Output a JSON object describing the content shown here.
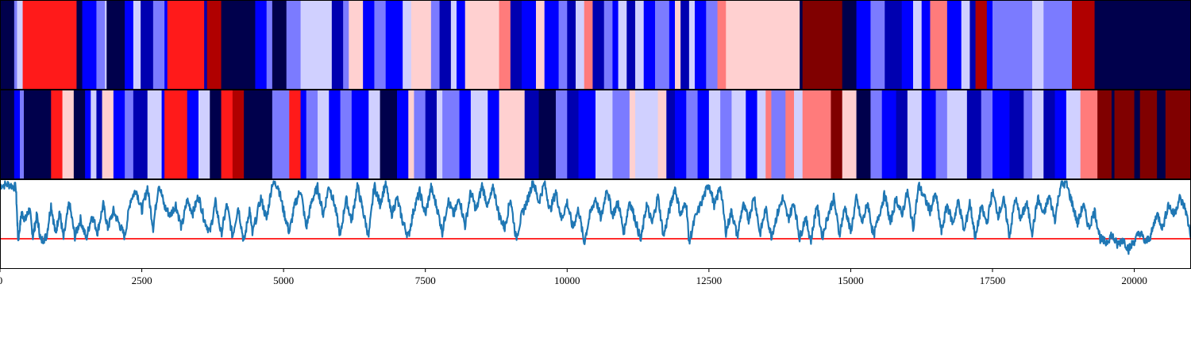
{
  "chart_data": {
    "type": "line",
    "title": "",
    "xlabel": "",
    "ylabel": "",
    "xlim": [
      0,
      21000
    ],
    "x_ticks": [
      0,
      2500,
      5000,
      7500,
      10000,
      12500,
      15000,
      17500,
      20000
    ],
    "x_tick_labels": [
      "0",
      "2500",
      "5000",
      "7500",
      "10000",
      "12500",
      "15000",
      "17500",
      "20000"
    ],
    "grid": false,
    "legend": "none",
    "panels": [
      {
        "type": "heatmap",
        "name": "state-strip-1"
      },
      {
        "type": "heatmap",
        "name": "state-strip-2"
      },
      {
        "type": "line",
        "name": "trace"
      }
    ],
    "colormap": [
      "#00004c",
      "#0000b0",
      "#0000ff",
      "#7b7bff",
      "#d0d0ff",
      "#ffd0d0",
      "#ff7b7b",
      "#ff1a1a",
      "#b00000",
      "#800000"
    ],
    "strip1": [
      [
        0,
        0
      ],
      [
        250,
        3
      ],
      [
        300,
        4
      ],
      [
        400,
        7
      ],
      [
        1350,
        0
      ],
      [
        1450,
        2
      ],
      [
        1700,
        3
      ],
      [
        1850,
        4
      ],
      [
        1880,
        0
      ],
      [
        2200,
        2
      ],
      [
        2350,
        4
      ],
      [
        2480,
        1
      ],
      [
        2700,
        3
      ],
      [
        2900,
        2
      ],
      [
        2950,
        7
      ],
      [
        3600,
        1
      ],
      [
        3650,
        8
      ],
      [
        3900,
        0
      ],
      [
        4500,
        2
      ],
      [
        4700,
        3
      ],
      [
        4800,
        0
      ],
      [
        5050,
        3
      ],
      [
        5300,
        4
      ],
      [
        5850,
        1
      ],
      [
        6050,
        3
      ],
      [
        6150,
        5
      ],
      [
        6400,
        2
      ],
      [
        6600,
        3
      ],
      [
        6800,
        2
      ],
      [
        7100,
        4
      ],
      [
        7250,
        5
      ],
      [
        7600,
        3
      ],
      [
        7750,
        1
      ],
      [
        7950,
        4
      ],
      [
        8050,
        2
      ],
      [
        8200,
        5
      ],
      [
        8800,
        6
      ],
      [
        9000,
        1
      ],
      [
        9200,
        2
      ],
      [
        9450,
        5
      ],
      [
        9600,
        2
      ],
      [
        9850,
        3
      ],
      [
        10000,
        1
      ],
      [
        10150,
        4
      ],
      [
        10300,
        6
      ],
      [
        10450,
        1
      ],
      [
        10650,
        3
      ],
      [
        10800,
        2
      ],
      [
        10900,
        4
      ],
      [
        11050,
        1
      ],
      [
        11200,
        4
      ],
      [
        11350,
        2
      ],
      [
        11550,
        3
      ],
      [
        11800,
        2
      ],
      [
        11900,
        5
      ],
      [
        12000,
        1
      ],
      [
        12150,
        4
      ],
      [
        12250,
        2
      ],
      [
        12450,
        3
      ],
      [
        12650,
        6
      ],
      [
        12800,
        5
      ],
      [
        14100,
        0
      ],
      [
        14150,
        9
      ],
      [
        14850,
        0
      ],
      [
        15100,
        2
      ],
      [
        15350,
        3
      ],
      [
        15600,
        1
      ],
      [
        15900,
        2
      ],
      [
        16100,
        4
      ],
      [
        16250,
        2
      ],
      [
        16400,
        6
      ],
      [
        16700,
        2
      ],
      [
        16950,
        4
      ],
      [
        17100,
        1
      ],
      [
        17200,
        8
      ],
      [
        17400,
        2
      ],
      [
        17500,
        3
      ],
      [
        18200,
        4
      ],
      [
        18400,
        3
      ],
      [
        18900,
        8
      ],
      [
        19300,
        0
      ]
    ],
    "strip2": [
      [
        0,
        0
      ],
      [
        250,
        2
      ],
      [
        350,
        3
      ],
      [
        420,
        0
      ],
      [
        900,
        7
      ],
      [
        1100,
        5
      ],
      [
        1300,
        0
      ],
      [
        1500,
        2
      ],
      [
        1600,
        4
      ],
      [
        1700,
        1
      ],
      [
        1800,
        5
      ],
      [
        2000,
        2
      ],
      [
        2200,
        3
      ],
      [
        2350,
        1
      ],
      [
        2600,
        4
      ],
      [
        2850,
        2
      ],
      [
        2900,
        7
      ],
      [
        3300,
        2
      ],
      [
        3500,
        4
      ],
      [
        3700,
        0
      ],
      [
        3900,
        7
      ],
      [
        4100,
        8
      ],
      [
        4300,
        0
      ],
      [
        4800,
        3
      ],
      [
        5100,
        7
      ],
      [
        5300,
        2
      ],
      [
        5400,
        3
      ],
      [
        5600,
        4
      ],
      [
        5800,
        2
      ],
      [
        6000,
        3
      ],
      [
        6200,
        2
      ],
      [
        6500,
        4
      ],
      [
        6700,
        0
      ],
      [
        7000,
        2
      ],
      [
        7200,
        5
      ],
      [
        7300,
        3
      ],
      [
        7500,
        1
      ],
      [
        7700,
        4
      ],
      [
        7800,
        3
      ],
      [
        8100,
        2
      ],
      [
        8300,
        4
      ],
      [
        8600,
        2
      ],
      [
        8800,
        5
      ],
      [
        9250,
        1
      ],
      [
        9500,
        0
      ],
      [
        9800,
        3
      ],
      [
        10000,
        1
      ],
      [
        10200,
        2
      ],
      [
        10500,
        4
      ],
      [
        10800,
        3
      ],
      [
        11100,
        5
      ],
      [
        11200,
        4
      ],
      [
        11600,
        5
      ],
      [
        11750,
        1
      ],
      [
        11900,
        2
      ],
      [
        12100,
        3
      ],
      [
        12300,
        2
      ],
      [
        12500,
        4
      ],
      [
        12700,
        3
      ],
      [
        12900,
        4
      ],
      [
        13150,
        2
      ],
      [
        13350,
        4
      ],
      [
        13500,
        6
      ],
      [
        13600,
        3
      ],
      [
        13850,
        6
      ],
      [
        14000,
        4
      ],
      [
        14150,
        6
      ],
      [
        14650,
        9
      ],
      [
        14850,
        5
      ],
      [
        15100,
        0
      ],
      [
        15350,
        3
      ],
      [
        15550,
        2
      ],
      [
        15800,
        1
      ],
      [
        16000,
        4
      ],
      [
        16250,
        2
      ],
      [
        16500,
        3
      ],
      [
        16700,
        4
      ],
      [
        17050,
        1
      ],
      [
        17300,
        3
      ],
      [
        17500,
        2
      ],
      [
        17800,
        1
      ],
      [
        18050,
        3
      ],
      [
        18200,
        4
      ],
      [
        18400,
        1
      ],
      [
        18600,
        2
      ],
      [
        18800,
        4
      ],
      [
        19050,
        6
      ],
      [
        19350,
        9
      ],
      [
        19600,
        0
      ],
      [
        19650,
        9
      ],
      [
        20000,
        0
      ],
      [
        20100,
        9
      ],
      [
        20400,
        0
      ],
      [
        20550,
        9
      ]
    ],
    "trace_y_range": [
      -1,
      1
    ],
    "threshold": -0.35,
    "trace": [
      [
        0,
        0.9
      ],
      [
        150,
        0.92
      ],
      [
        280,
        0.85
      ],
      [
        320,
        -0.4
      ],
      [
        380,
        0.25
      ],
      [
        450,
        0.1
      ],
      [
        520,
        0.35
      ],
      [
        580,
        -0.3
      ],
      [
        650,
        0.2
      ],
      [
        720,
        -0.4
      ],
      [
        820,
        -0.3
      ],
      [
        900,
        0.45
      ],
      [
        980,
        -0.25
      ],
      [
        1050,
        0.3
      ],
      [
        1120,
        -0.35
      ],
      [
        1220,
        0.5
      ],
      [
        1320,
        -0.3
      ],
      [
        1420,
        0.1
      ],
      [
        1520,
        -0.35
      ],
      [
        1620,
        0.2
      ],
      [
        1720,
        -0.2
      ],
      [
        1820,
        0.45
      ],
      [
        1900,
        -0.1
      ],
      [
        2000,
        0.3
      ],
      [
        2100,
        0.0
      ],
      [
        2200,
        -0.3
      ],
      [
        2300,
        0.55
      ],
      [
        2400,
        0.8
      ],
      [
        2500,
        0.3
      ],
      [
        2600,
        0.85
      ],
      [
        2700,
        -0.1
      ],
      [
        2800,
        0.95
      ],
      [
        2900,
        0.4
      ],
      [
        3000,
        0.2
      ],
      [
        3100,
        0.45
      ],
      [
        3200,
        -0.1
      ],
      [
        3300,
        0.55
      ],
      [
        3400,
        0.25
      ],
      [
        3500,
        0.65
      ],
      [
        3600,
        0.1
      ],
      [
        3700,
        -0.2
      ],
      [
        3800,
        0.5
      ],
      [
        3900,
        -0.25
      ],
      [
        4000,
        0.45
      ],
      [
        4100,
        -0.3
      ],
      [
        4200,
        0.4
      ],
      [
        4300,
        -0.45
      ],
      [
        4400,
        0.35
      ],
      [
        4450,
        -0.25
      ],
      [
        4600,
        0.6
      ],
      [
        4700,
        0.1
      ],
      [
        4800,
        0.95
      ],
      [
        4900,
        0.9
      ],
      [
        5000,
        0.3
      ],
      [
        5100,
        -0.2
      ],
      [
        5200,
        0.45
      ],
      [
        5300,
        0.8
      ],
      [
        5400,
        -0.1
      ],
      [
        5500,
        0.55
      ],
      [
        5600,
        0.85
      ],
      [
        5700,
        0.2
      ],
      [
        5800,
        0.9
      ],
      [
        5900,
        0.45
      ],
      [
        6000,
        -0.3
      ],
      [
        6100,
        0.6
      ],
      [
        6200,
        0.05
      ],
      [
        6300,
        0.9
      ],
      [
        6400,
        0.3
      ],
      [
        6500,
        -0.3
      ],
      [
        6600,
        0.9
      ],
      [
        6700,
        0.45
      ],
      [
        6800,
        0.95
      ],
      [
        6900,
        0.2
      ],
      [
        7000,
        0.6
      ],
      [
        7100,
        0.05
      ],
      [
        7200,
        -0.3
      ],
      [
        7300,
        0.35
      ],
      [
        7400,
        0.75
      ],
      [
        7500,
        0.2
      ],
      [
        7600,
        0.85
      ],
      [
        7700,
        0.4
      ],
      [
        7800,
        -0.2
      ],
      [
        7900,
        0.55
      ],
      [
        8000,
        0.2
      ],
      [
        8100,
        0.6
      ],
      [
        8200,
        -0.05
      ],
      [
        8300,
        0.75
      ],
      [
        8400,
        0.3
      ],
      [
        8500,
        0.9
      ],
      [
        8600,
        0.4
      ],
      [
        8700,
        0.85
      ],
      [
        8800,
        0.2
      ],
      [
        8900,
        -0.1
      ],
      [
        9000,
        0.6
      ],
      [
        9100,
        -0.35
      ],
      [
        9200,
        0.2
      ],
      [
        9300,
        0.55
      ],
      [
        9400,
        1.0
      ],
      [
        9500,
        0.5
      ],
      [
        9600,
        0.95
      ],
      [
        9700,
        0.3
      ],
      [
        9800,
        0.75
      ],
      [
        9900,
        0.1
      ],
      [
        10000,
        0.5
      ],
      [
        10100,
        -0.1
      ],
      [
        10200,
        0.35
      ],
      [
        10300,
        -0.45
      ],
      [
        10400,
        0.2
      ],
      [
        10500,
        0.6
      ],
      [
        10600,
        0.1
      ],
      [
        10700,
        0.85
      ],
      [
        10800,
        0.2
      ],
      [
        10900,
        0.5
      ],
      [
        11000,
        -0.2
      ],
      [
        11100,
        0.55
      ],
      [
        11200,
        0.1
      ],
      [
        11300,
        -0.4
      ],
      [
        11400,
        0.45
      ],
      [
        11500,
        0.0
      ],
      [
        11600,
        0.65
      ],
      [
        11700,
        -0.3
      ],
      [
        11800,
        0.3
      ],
      [
        11900,
        0.85
      ],
      [
        12000,
        0.2
      ],
      [
        12100,
        0.5
      ],
      [
        12150,
        -0.45
      ],
      [
        12250,
        0.1
      ],
      [
        12400,
        0.6
      ],
      [
        12500,
        0.95
      ],
      [
        12600,
        0.4
      ],
      [
        12700,
        0.9
      ],
      [
        12800,
        -0.2
      ],
      [
        12900,
        0.3
      ],
      [
        13000,
        -0.3
      ],
      [
        13100,
        0.45
      ],
      [
        13200,
        0.1
      ],
      [
        13300,
        0.65
      ],
      [
        13400,
        -0.25
      ],
      [
        13500,
        0.35
      ],
      [
        13600,
        -0.3
      ],
      [
        13700,
        0.2
      ],
      [
        13800,
        0.6
      ],
      [
        13900,
        0.1
      ],
      [
        14000,
        0.5
      ],
      [
        14100,
        -0.35
      ],
      [
        14200,
        0.15
      ],
      [
        14300,
        -0.4
      ],
      [
        14400,
        0.45
      ],
      [
        14500,
        -0.3
      ],
      [
        14600,
        0.2
      ],
      [
        14700,
        0.6
      ],
      [
        14800,
        -0.25
      ],
      [
        14900,
        0.4
      ],
      [
        15000,
        -0.2
      ],
      [
        15100,
        0.6
      ],
      [
        15200,
        0.0
      ],
      [
        15300,
        0.5
      ],
      [
        15400,
        -0.3
      ],
      [
        15500,
        0.2
      ],
      [
        15600,
        0.7
      ],
      [
        15700,
        0.0
      ],
      [
        15800,
        0.6
      ],
      [
        15900,
        0.2
      ],
      [
        16000,
        0.75
      ],
      [
        16100,
        -0.1
      ],
      [
        16200,
        0.9
      ],
      [
        16300,
        0.6
      ],
      [
        16400,
        0.3
      ],
      [
        16500,
        0.7
      ],
      [
        16600,
        -0.2
      ],
      [
        16700,
        0.45
      ],
      [
        16800,
        0.0
      ],
      [
        16900,
        0.55
      ],
      [
        17000,
        -0.2
      ],
      [
        17100,
        0.5
      ],
      [
        17200,
        -0.35
      ],
      [
        17300,
        0.4
      ],
      [
        17400,
        0.0
      ],
      [
        17500,
        0.75
      ],
      [
        17600,
        0.2
      ],
      [
        17700,
        0.55
      ],
      [
        17800,
        -0.3
      ],
      [
        17900,
        0.6
      ],
      [
        18000,
        0.1
      ],
      [
        18100,
        0.5
      ],
      [
        18200,
        -0.2
      ],
      [
        18300,
        0.6
      ],
      [
        18400,
        0.2
      ],
      [
        18500,
        0.65
      ],
      [
        18600,
        0.1
      ],
      [
        18700,
        0.9
      ],
      [
        18800,
        0.95
      ],
      [
        18900,
        0.5
      ],
      [
        19000,
        0.0
      ],
      [
        19100,
        0.45
      ],
      [
        19200,
        -0.1
      ],
      [
        19300,
        0.3
      ],
      [
        19400,
        -0.35
      ],
      [
        19500,
        -0.45
      ],
      [
        19600,
        -0.25
      ],
      [
        19700,
        -0.5
      ],
      [
        19800,
        -0.35
      ],
      [
        19900,
        -0.6
      ],
      [
        20000,
        -0.4
      ],
      [
        20100,
        -0.2
      ],
      [
        20200,
        -0.45
      ],
      [
        20300,
        -0.25
      ],
      [
        20400,
        0.25
      ],
      [
        20500,
        -0.1
      ],
      [
        20600,
        0.45
      ],
      [
        20700,
        0.2
      ],
      [
        20800,
        0.6
      ],
      [
        20900,
        0.35
      ],
      [
        21000,
        -0.3
      ]
    ]
  }
}
